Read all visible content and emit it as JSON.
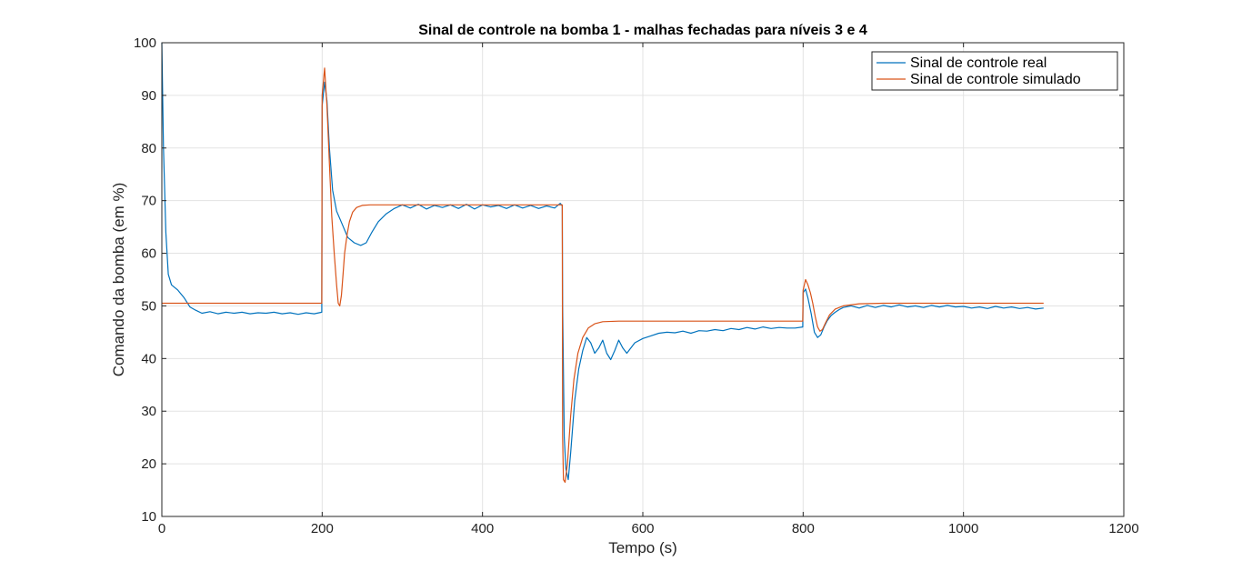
{
  "chart_data": {
    "type": "line",
    "title": "Sinal de controle na bomba 1 - malhas fechadas para níveis 3 e 4",
    "xlabel": "Tempo (s)",
    "ylabel": "Comando da bomba (em %)",
    "xlim": [
      0,
      1200
    ],
    "ylim": [
      10,
      100
    ],
    "xticks": [
      0,
      200,
      400,
      600,
      800,
      1000,
      1200
    ],
    "yticks": [
      10,
      20,
      30,
      40,
      50,
      60,
      70,
      80,
      90,
      100
    ],
    "xtick_labels": [
      "0",
      "200",
      "400",
      "600",
      "800",
      "1000",
      "1200"
    ],
    "ytick_labels": [
      "10",
      "20",
      "30",
      "40",
      "50",
      "60",
      "70",
      "80",
      "90",
      "100"
    ],
    "grid": true,
    "legend_position": "top-right",
    "series": [
      {
        "name": "Sinal de controle real",
        "color": "#0072bd",
        "x": [
          0,
          2,
          5,
          8,
          12,
          20,
          28,
          35,
          42,
          50,
          60,
          70,
          80,
          90,
          100,
          110,
          120,
          130,
          140,
          150,
          160,
          170,
          180,
          190,
          199.5,
          200,
          203,
          206,
          209,
          213,
          218,
          225,
          232,
          240,
          248,
          255,
          262,
          270,
          280,
          290,
          300,
          310,
          320,
          330,
          340,
          350,
          360,
          370,
          380,
          390,
          400,
          410,
          420,
          430,
          440,
          450,
          460,
          470,
          480,
          490,
          497,
          499.5,
          500,
          502,
          504,
          507,
          510,
          515,
          520,
          525,
          530,
          535,
          540,
          545,
          550,
          555,
          560,
          565,
          570,
          575,
          580,
          590,
          600,
          610,
          620,
          630,
          640,
          650,
          660,
          670,
          680,
          690,
          700,
          710,
          720,
          730,
          740,
          750,
          760,
          770,
          780,
          790,
          799.5,
          800,
          803,
          806,
          810,
          814,
          818,
          822,
          826,
          830,
          835,
          840,
          845,
          850,
          860,
          870,
          880,
          890,
          900,
          910,
          920,
          930,
          940,
          950,
          960,
          970,
          980,
          990,
          1000,
          1010,
          1020,
          1030,
          1040,
          1050,
          1060,
          1070,
          1080,
          1090,
          1100
        ],
        "y": [
          100,
          80,
          64,
          56,
          54,
          53,
          51.5,
          49.8,
          49.2,
          48.6,
          48.9,
          48.5,
          48.8,
          48.6,
          48.8,
          48.5,
          48.7,
          48.6,
          48.8,
          48.5,
          48.7,
          48.4,
          48.7,
          48.5,
          48.8,
          88,
          92.5,
          89,
          80,
          72,
          68,
          65.5,
          63,
          62,
          61.5,
          62,
          64,
          66,
          67.5,
          68.5,
          69.2,
          68.6,
          69.3,
          68.4,
          69.1,
          68.7,
          69.2,
          68.5,
          69.3,
          68.4,
          69.2,
          68.8,
          69.1,
          68.5,
          69.2,
          68.6,
          69.1,
          68.5,
          69,
          68.6,
          69.5,
          69,
          50,
          25,
          19,
          17,
          22,
          32,
          38,
          41.5,
          44,
          43,
          41,
          42,
          43.5,
          41,
          39.8,
          41.5,
          43.5,
          42,
          41,
          43,
          43.8,
          44.3,
          44.8,
          45,
          44.9,
          45.2,
          44.8,
          45.3,
          45.2,
          45.5,
          45.3,
          45.7,
          45.5,
          45.9,
          45.6,
          46,
          45.7,
          45.9,
          45.8,
          45.8,
          46,
          52.5,
          53.2,
          51.5,
          48.5,
          45,
          44,
          44.5,
          46,
          47.2,
          48.2,
          48.8,
          49.3,
          49.7,
          50,
          49.6,
          50.1,
          49.7,
          50.1,
          49.8,
          50.2,
          49.8,
          50,
          49.7,
          50.1,
          49.8,
          50.1,
          49.8,
          49.9,
          49.6,
          49.8,
          49.5,
          49.9,
          49.6,
          49.8,
          49.5,
          49.7,
          49.4,
          49.6
        ]
      },
      {
        "name": "Sinal de controle simulado",
        "color": "#d95319",
        "x": [
          0,
          199.5,
          200,
          203,
          206,
          209,
          212,
          215,
          218,
          220,
          222,
          224,
          226,
          228,
          231,
          234,
          238,
          243,
          250,
          260,
          270,
          280,
          300,
          400,
          499.5,
          500,
          501,
          503,
          506,
          510,
          514,
          519,
          525,
          532,
          540,
          550,
          570,
          600,
          700,
          799.5,
          800,
          803,
          806,
          809,
          812,
          815,
          818,
          821,
          824,
          828,
          833,
          840,
          850,
          870,
          900,
          1000,
          1100
        ],
        "y": [
          50.5,
          50.5,
          90,
          95.2,
          88,
          77,
          67,
          60,
          54,
          50.5,
          50,
          52,
          56,
          60,
          63.5,
          66,
          67.8,
          68.7,
          69.1,
          69.2,
          69.2,
          69.2,
          69.2,
          69.2,
          69.2,
          25,
          17,
          16.5,
          20,
          29,
          36,
          41,
          44,
          45.8,
          46.6,
          47,
          47.1,
          47.1,
          47.1,
          47.1,
          53,
          55,
          54,
          52.5,
          50.5,
          48,
          46,
          45.2,
          45.5,
          46.8,
          48.3,
          49.4,
          50,
          50.4,
          50.5,
          50.5,
          50.5
        ]
      }
    ]
  }
}
